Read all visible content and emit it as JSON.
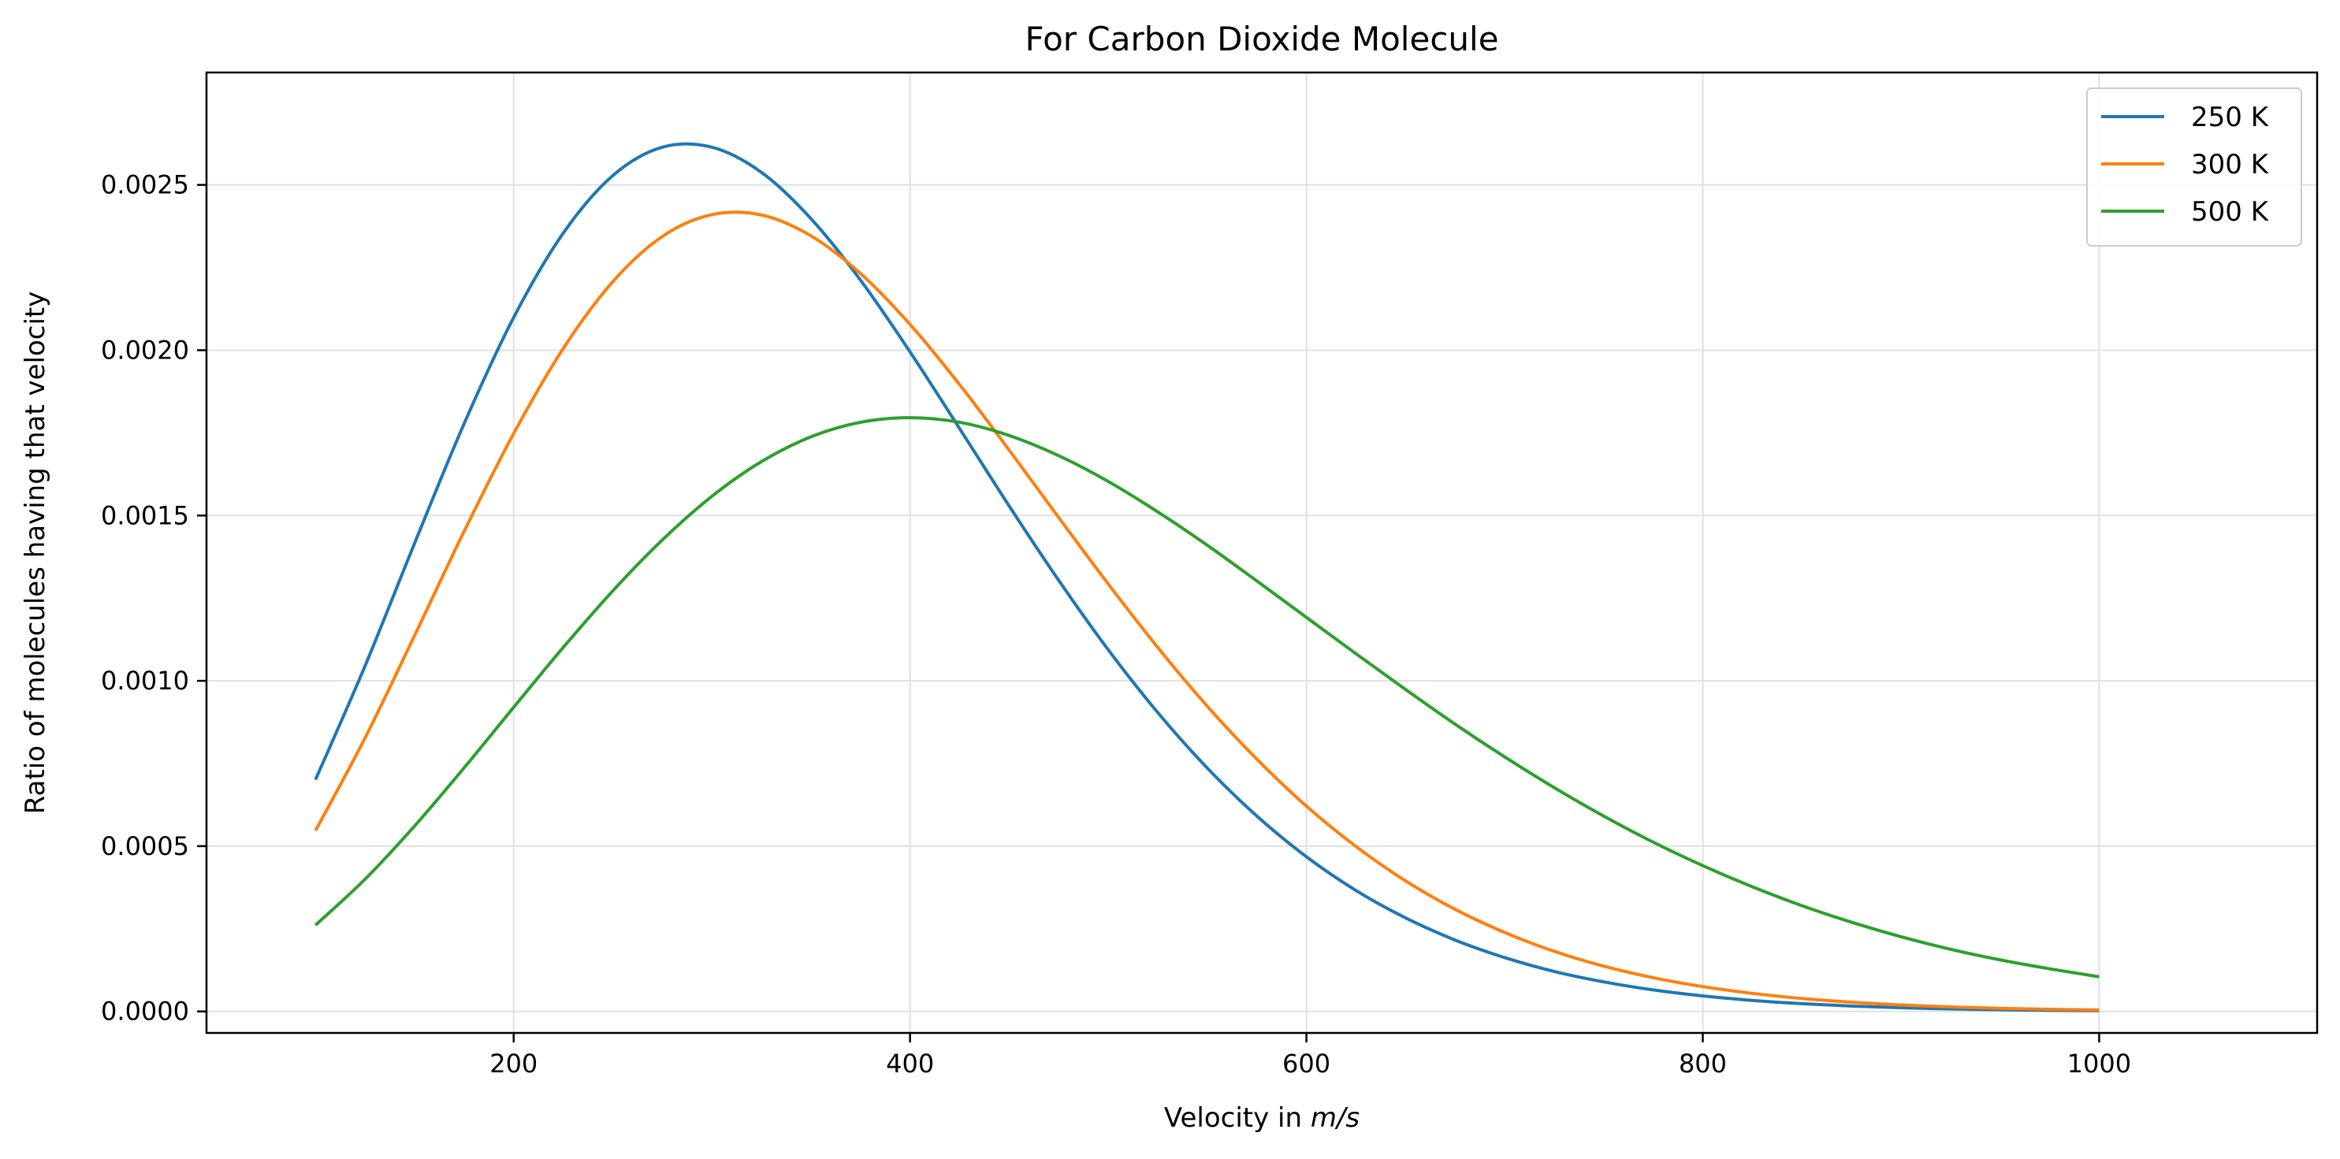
{
  "chart_data": {
    "type": "line",
    "title": "For Carbon Dioxide Molecule",
    "xlabel_prefix": "Velocity in ",
    "xlabel_unit": "m/s",
    "ylabel": "Ratio of molecules having that velocity",
    "xlim": [
      45,
      1110
    ],
    "ylim": [
      -6.5e-05,
      0.00284
    ],
    "xticks": [
      200,
      400,
      600,
      800,
      1000
    ],
    "xtick_labels": [
      "200",
      "400",
      "600",
      "800",
      "1000"
    ],
    "yticks": [
      0,
      0.0005,
      0.001,
      0.0015,
      0.002,
      0.0025
    ],
    "ytick_labels": [
      "0.0000",
      "0.0005",
      "0.0010",
      "0.0015",
      "0.0020",
      "0.0025"
    ],
    "grid": true,
    "legend_position": "top-right",
    "x": [
      100,
      125,
      150,
      175,
      200,
      225,
      250,
      275,
      300,
      325,
      350,
      375,
      400,
      425,
      450,
      475,
      500,
      525,
      550,
      575,
      600,
      625,
      650,
      675,
      700,
      725,
      750,
      775,
      800,
      825,
      850,
      875,
      900,
      925,
      950,
      975,
      1000
    ],
    "series": [
      {
        "name": "250 K",
        "color": "#1f77b4",
        "values": [
          0.000701,
          0.001045,
          0.001416,
          0.001778,
          0.002099,
          0.002354,
          0.002528,
          0.002614,
          0.002614,
          0.002538,
          0.002398,
          0.002212,
          0.001995,
          0.001763,
          0.001529,
          0.001304,
          0.001094,
          0.000904,
          0.000736,
          0.000591,
          0.000468,
          0.000366,
          0.000283,
          0.000216,
          0.000163,
          0.000121,
          8.94e-05,
          6.51e-05,
          4.69e-05,
          3.34e-05,
          2.35e-05,
          1.64e-05,
          1.13e-05,
          7.7e-06,
          5.2e-06,
          3.5e-06,
          2.3e-06
        ]
      },
      {
        "name": "300 K",
        "color": "#ff7f0e",
        "values": [
          0.000547,
          0.000827,
          0.001137,
          0.001452,
          0.001748,
          0.002005,
          0.002207,
          0.002344,
          0.00241,
          0.002409,
          0.002346,
          0.002232,
          0.002078,
          0.001896,
          0.001698,
          0.001494,
          0.001293,
          0.001101,
          0.000923,
          0.000763,
          0.000621,
          0.000499,
          0.000395,
          0.000309,
          0.000239,
          0.000182,
          0.000137,
          0.000102,
          7.51e-05,
          5.46e-05,
          3.93e-05,
          2.79e-05,
          1.96e-05,
          1.37e-05,
          9.4e-06,
          6.4e-06,
          4.3e-06
        ]
      },
      {
        "name": "500 K",
        "color": "#2ca02c",
        "values": [
          0.000261,
          0.0004,
          0.000561,
          0.000737,
          0.00092,
          0.001101,
          0.001272,
          0.001426,
          0.001558,
          0.001663,
          0.001738,
          0.001782,
          0.001796,
          0.001782,
          0.001742,
          0.001681,
          0.001603,
          0.001511,
          0.00141,
          0.001302,
          0.001192,
          0.001082,
          0.000974,
          0.000869,
          0.00077,
          0.000677,
          0.000591,
          0.000512,
          0.000441,
          0.000377,
          0.00032,
          0.00027,
          0.000226,
          0.000188,
          0.000156,
          0.000129,
          0.000105
        ]
      }
    ]
  }
}
